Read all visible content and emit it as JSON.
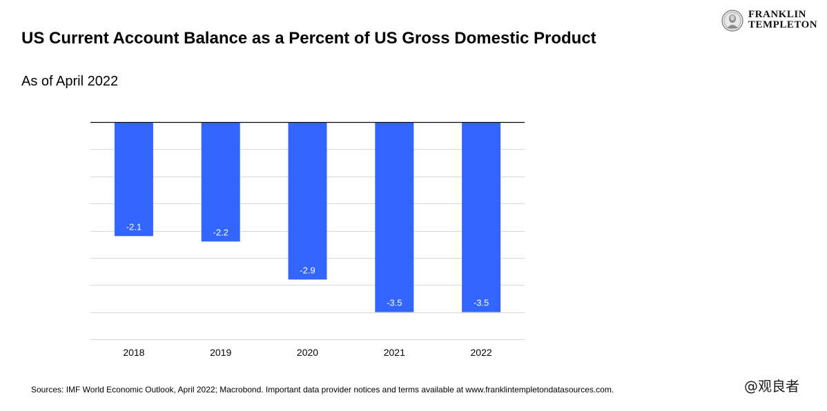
{
  "header": {
    "title": "US Current Account Balance as a Percent of US Gross Domestic Product",
    "subtitle": "As of April 2022"
  },
  "logo": {
    "line1": "FRANKLIN",
    "line2": "TEMPLETON"
  },
  "footer": {
    "source": "Sources: IMF World Economic Outlook, April 2022; Macrobond. Important data provider notices and terms available at www.franklintempletondatasources.com."
  },
  "watermark": "@观良者",
  "colors": {
    "bar": "#3366ff",
    "gridline": "#d9d9d9",
    "axis": "#000000"
  },
  "chart_data": {
    "type": "bar",
    "title": "US Current Account Balance as a Percent of US Gross Domestic Product",
    "subtitle": "As of April 2022",
    "categories": [
      "2018",
      "2019",
      "2020",
      "2021",
      "2022"
    ],
    "values": [
      -2.1,
      -2.2,
      -2.9,
      -3.5,
      -3.5
    ],
    "labels": [
      "-2.1",
      "-2.2",
      "-2.9",
      "-3.5",
      "-3.5"
    ],
    "ylim": [
      -4.0,
      0.0
    ],
    "gridlines": true,
    "xlabel": "",
    "ylabel": ""
  }
}
